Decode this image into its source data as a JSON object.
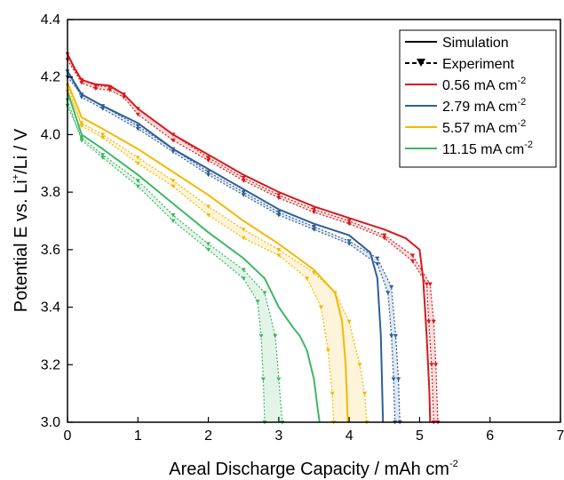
{
  "chart_data": {
    "type": "line",
    "title": "",
    "xlabel": {
      "main": "Areal Discharge Capacity / mAh cm",
      "sup": "-2"
    },
    "ylabel": {
      "p1": "Potential E vs. Li",
      "sup": "+",
      "p2": "/Li / V"
    },
    "xlim": [
      0,
      7
    ],
    "ylim": [
      3.0,
      4.4
    ],
    "xticks": [
      "0",
      "1",
      "2",
      "3",
      "4",
      "5",
      "6",
      "7"
    ],
    "yticks": [
      "3.0",
      "3.2",
      "3.4",
      "3.6",
      "3.8",
      "4.0",
      "4.2",
      "4.4"
    ],
    "grid": false,
    "legend_position": "top-right",
    "legend": {
      "simulation": "Simulation",
      "experiment": "Experiment",
      "unit": "mA cm",
      "unit_sup": "-2"
    },
    "series": [
      {
        "name": "0.56",
        "color": "#d7191c",
        "simulation": [
          [
            0,
            4.28
          ],
          [
            0.1,
            4.23
          ],
          [
            0.2,
            4.19
          ],
          [
            0.4,
            4.175
          ],
          [
            0.6,
            4.17
          ],
          [
            0.8,
            4.14
          ],
          [
            1,
            4.09
          ],
          [
            1.5,
            4.0
          ],
          [
            2,
            3.93
          ],
          [
            2.5,
            3.86
          ],
          [
            3,
            3.8
          ],
          [
            3.5,
            3.75
          ],
          [
            4,
            3.71
          ],
          [
            4.5,
            3.67
          ],
          [
            4.8,
            3.64
          ],
          [
            5.0,
            3.6
          ],
          [
            5.05,
            3.5
          ],
          [
            5.1,
            3.3
          ],
          [
            5.14,
            3.1
          ],
          [
            5.15,
            3.0
          ]
        ],
        "experiment_low": [
          [
            0,
            4.26
          ],
          [
            0.2,
            4.18
          ],
          [
            0.4,
            4.16
          ],
          [
            0.6,
            4.155
          ],
          [
            0.8,
            4.13
          ],
          [
            1,
            4.07
          ],
          [
            1.5,
            3.98
          ],
          [
            2,
            3.91
          ],
          [
            2.5,
            3.84
          ],
          [
            3,
            3.78
          ],
          [
            3.5,
            3.73
          ],
          [
            4,
            3.69
          ],
          [
            4.5,
            3.64
          ],
          [
            4.9,
            3.56
          ],
          [
            5.1,
            3.48
          ],
          [
            5.13,
            3.35
          ],
          [
            5.17,
            3.2
          ],
          [
            5.2,
            3.0
          ]
        ],
        "experiment_high": [
          [
            0,
            4.28
          ],
          [
            0.2,
            4.19
          ],
          [
            0.4,
            4.17
          ],
          [
            0.6,
            4.165
          ],
          [
            0.8,
            4.14
          ],
          [
            1,
            4.09
          ],
          [
            1.5,
            4.0
          ],
          [
            2,
            3.92
          ],
          [
            2.5,
            3.85
          ],
          [
            3,
            3.79
          ],
          [
            3.5,
            3.74
          ],
          [
            4,
            3.7
          ],
          [
            4.5,
            3.65
          ],
          [
            4.9,
            3.58
          ],
          [
            5.15,
            3.48
          ],
          [
            5.2,
            3.35
          ],
          [
            5.23,
            3.2
          ],
          [
            5.26,
            3.0
          ]
        ]
      },
      {
        "name": "2.79",
        "color": "#2f5f98",
        "simulation": [
          [
            0,
            4.22
          ],
          [
            0.2,
            4.14
          ],
          [
            0.5,
            4.1
          ],
          [
            1,
            4.04
          ],
          [
            1.5,
            3.95
          ],
          [
            2,
            3.88
          ],
          [
            2.5,
            3.81
          ],
          [
            3,
            3.74
          ],
          [
            3.5,
            3.69
          ],
          [
            4,
            3.65
          ],
          [
            4.3,
            3.59
          ],
          [
            4.4,
            3.5
          ],
          [
            4.45,
            3.3
          ],
          [
            4.47,
            3.1
          ],
          [
            4.48,
            3.0
          ]
        ],
        "experiment_low": [
          [
            0,
            4.22
          ],
          [
            0.2,
            4.13
          ],
          [
            0.5,
            4.09
          ],
          [
            1,
            4.02
          ],
          [
            1.5,
            3.94
          ],
          [
            2,
            3.86
          ],
          [
            2.5,
            3.79
          ],
          [
            3,
            3.72
          ],
          [
            3.5,
            3.67
          ],
          [
            4,
            3.62
          ],
          [
            4.4,
            3.55
          ],
          [
            4.55,
            3.45
          ],
          [
            4.6,
            3.3
          ],
          [
            4.63,
            3.15
          ],
          [
            4.65,
            3.0
          ]
        ],
        "experiment_high": [
          [
            0,
            4.2
          ],
          [
            0.2,
            4.14
          ],
          [
            0.5,
            4.1
          ],
          [
            1,
            4.03
          ],
          [
            1.5,
            3.95
          ],
          [
            2,
            3.87
          ],
          [
            2.5,
            3.8
          ],
          [
            3,
            3.73
          ],
          [
            3.5,
            3.68
          ],
          [
            4,
            3.63
          ],
          [
            4.4,
            3.57
          ],
          [
            4.6,
            3.47
          ],
          [
            4.66,
            3.3
          ],
          [
            4.7,
            3.15
          ],
          [
            4.72,
            3.0
          ]
        ]
      },
      {
        "name": "5.57",
        "color": "#f5b800",
        "simulation": [
          [
            0,
            4.18
          ],
          [
            0.2,
            4.06
          ],
          [
            0.5,
            4.02
          ],
          [
            1,
            3.95
          ],
          [
            1.5,
            3.87
          ],
          [
            2,
            3.79
          ],
          [
            2.5,
            3.7
          ],
          [
            3,
            3.62
          ],
          [
            3.5,
            3.53
          ],
          [
            3.8,
            3.45
          ],
          [
            3.9,
            3.35
          ],
          [
            3.95,
            3.2
          ],
          [
            3.98,
            3.0
          ]
        ],
        "experiment_low": [
          [
            0,
            4.17
          ],
          [
            0.2,
            4.03
          ],
          [
            0.5,
            3.99
          ],
          [
            1,
            3.9
          ],
          [
            1.5,
            3.82
          ],
          [
            2,
            3.72
          ],
          [
            2.5,
            3.64
          ],
          [
            3,
            3.58
          ],
          [
            3.4,
            3.5
          ],
          [
            3.6,
            3.4
          ],
          [
            3.7,
            3.25
          ],
          [
            3.76,
            3.1
          ],
          [
            3.78,
            3.0
          ]
        ],
        "experiment_high": [
          [
            0,
            4.15
          ],
          [
            0.2,
            4.04
          ],
          [
            0.5,
            4.0
          ],
          [
            1,
            3.92
          ],
          [
            1.5,
            3.84
          ],
          [
            2,
            3.75
          ],
          [
            2.5,
            3.67
          ],
          [
            3,
            3.6
          ],
          [
            3.5,
            3.52
          ],
          [
            3.8,
            3.45
          ],
          [
            4.0,
            3.35
          ],
          [
            4.15,
            3.2
          ],
          [
            4.22,
            3.1
          ],
          [
            4.25,
            3.0
          ]
        ]
      },
      {
        "name": "11.15",
        "color": "#3cb865",
        "simulation": [
          [
            0,
            4.15
          ],
          [
            0.2,
            4.0
          ],
          [
            0.5,
            3.95
          ],
          [
            1,
            3.86
          ],
          [
            1.5,
            3.76
          ],
          [
            2,
            3.66
          ],
          [
            2.5,
            3.57
          ],
          [
            2.8,
            3.5
          ],
          [
            3.0,
            3.4
          ],
          [
            3.2,
            3.33
          ],
          [
            3.3,
            3.3
          ],
          [
            3.4,
            3.25
          ],
          [
            3.5,
            3.15
          ],
          [
            3.55,
            3.05
          ],
          [
            3.58,
            3.0
          ]
        ],
        "experiment_low": [
          [
            0,
            4.12
          ],
          [
            0.2,
            3.98
          ],
          [
            0.5,
            3.92
          ],
          [
            1,
            3.82
          ],
          [
            1.5,
            3.7
          ],
          [
            2,
            3.6
          ],
          [
            2.5,
            3.5
          ],
          [
            2.7,
            3.42
          ],
          [
            2.75,
            3.3
          ],
          [
            2.78,
            3.15
          ],
          [
            2.8,
            3.0
          ]
        ],
        "experiment_high": [
          [
            0,
            4.1
          ],
          [
            0.2,
            3.99
          ],
          [
            0.5,
            3.93
          ],
          [
            1,
            3.84
          ],
          [
            1.5,
            3.72
          ],
          [
            2,
            3.62
          ],
          [
            2.5,
            3.53
          ],
          [
            2.8,
            3.45
          ],
          [
            2.95,
            3.3
          ],
          [
            3.0,
            3.15
          ],
          [
            3.05,
            3.0
          ]
        ]
      }
    ]
  }
}
